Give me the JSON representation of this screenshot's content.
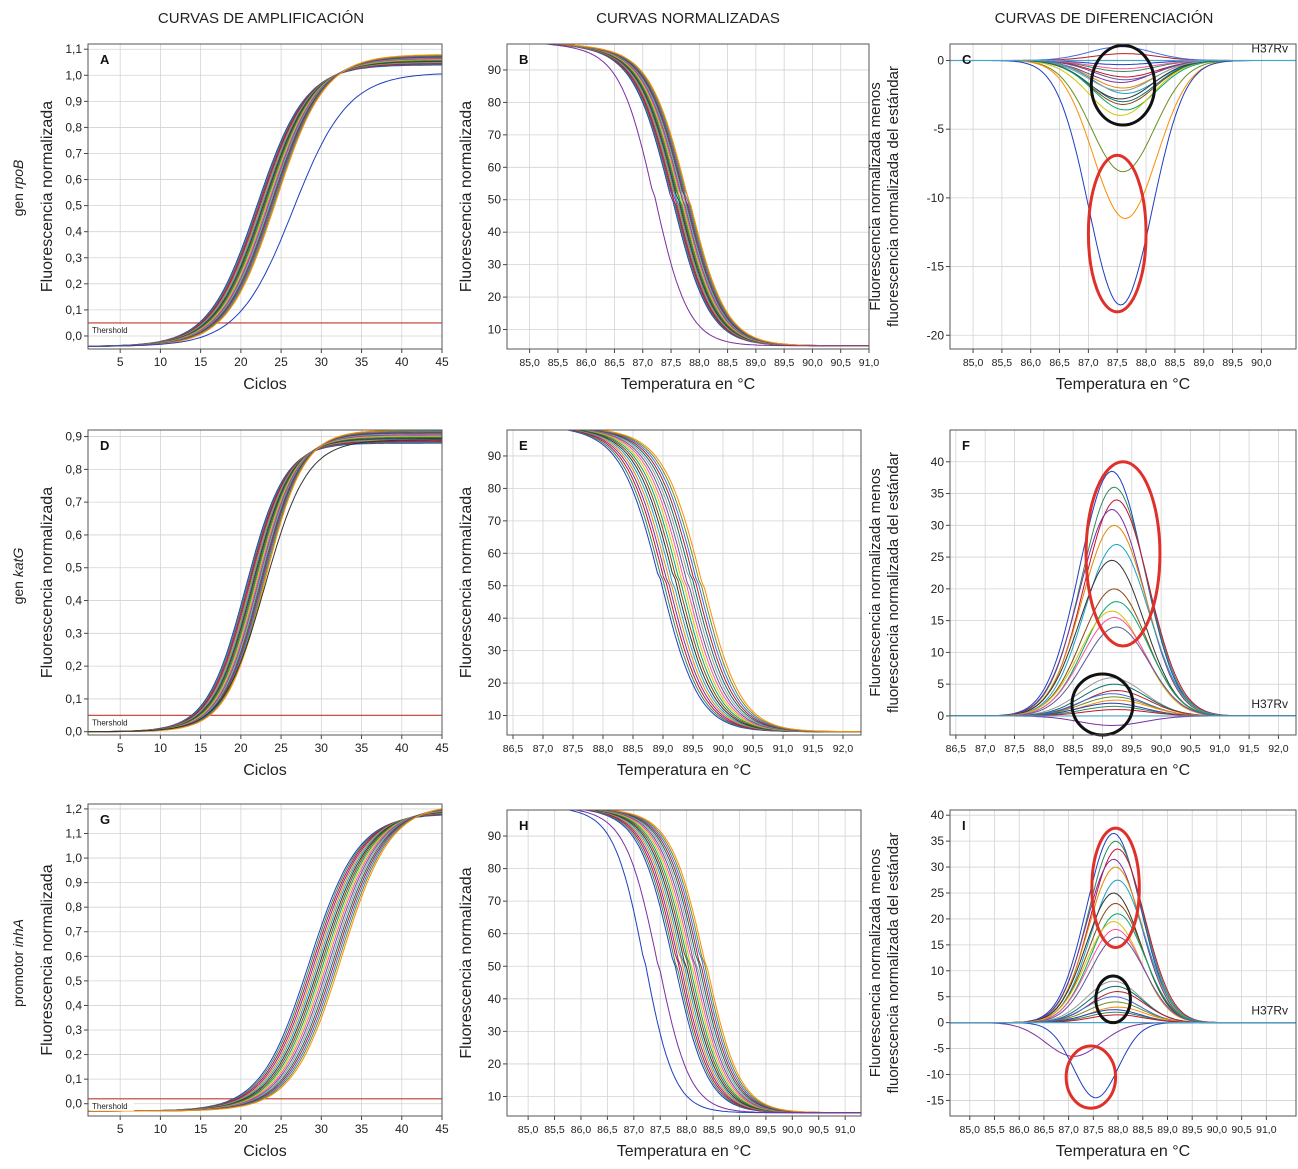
{
  "column_headers": [
    "CURVAS DE AMPLIFICACIÓN",
    "CURVAS NORMALIZADAS",
    "CURVAS DE DIFERENCIACIÓN"
  ],
  "row_labels": [
    {
      "prefix": "gen ",
      "gene": "rpoB"
    },
    {
      "prefix": "gen ",
      "gene": "katG"
    },
    {
      "prefix": "promotor ",
      "gene": "inhA"
    }
  ],
  "colors": {
    "threshold": "#c0392b",
    "highlight_red": "#e0302a",
    "highlight_black": "#111111",
    "grid": "#d3d3d3",
    "palette": [
      "#1f3fbf",
      "#2e8b57",
      "#c8102e",
      "#7b2fa0",
      "#e08a00",
      "#17a2c8",
      "#333333",
      "#8b4513",
      "#00a86b",
      "#d4c400",
      "#ff4fa0",
      "#5a5a9a",
      "#999999",
      "#0a6e6e",
      "#b22222",
      "#4169e1",
      "#6b8e23",
      "#ff8c00"
    ]
  },
  "chart_data": [
    {
      "panel": "A",
      "type": "line",
      "xlabel": "Ciclos",
      "ylabel": "Fluorescencia normalizada",
      "xlim": [
        1,
        45
      ],
      "ylim": [
        -0.05,
        1.12
      ],
      "xticks": [
        5,
        10,
        15,
        20,
        25,
        30,
        35,
        40,
        45
      ],
      "xtick_labels": [
        "5",
        "10",
        "15",
        "20",
        "25",
        "30",
        "35",
        "40",
        "45"
      ],
      "yticks": [
        0,
        0.1,
        0.2,
        0.3,
        0.4,
        0.5,
        0.6,
        0.7,
        0.8,
        0.9,
        1.0,
        1.1
      ],
      "ytick_labels": [
        "0,0",
        "0,1",
        "0,2",
        "0,3",
        "0,4",
        "0,5",
        "0,6",
        "0,7",
        "0,8",
        "0,9",
        "1,0",
        "1,1"
      ],
      "threshold": 0.05,
      "threshold_label": "Thershold",
      "family": "sigmoid",
      "midpoint": 23.2,
      "slope": 3.0,
      "top": 1.06,
      "bottom": -0.04,
      "n": 18,
      "spread": 1.2,
      "outliers": [
        {
          "midpoint": 26.5,
          "slope": 3.4,
          "top": 1.01,
          "color": "#1f3fbf"
        }
      ],
      "grid": true
    },
    {
      "panel": "B",
      "type": "line",
      "xlabel": "Temperatura en °C",
      "ylabel": "Fluorescencia normalizada",
      "xlim": [
        84.6,
        91.0
      ],
      "ylim": [
        4,
        98
      ],
      "xticks": [
        85.0,
        85.5,
        86.0,
        86.5,
        87.0,
        87.5,
        88.0,
        88.5,
        89.0,
        89.5,
        90.0,
        90.5,
        91.0
      ],
      "xtick_labels": [
        "85,0",
        "85,5",
        "86,0",
        "86,5",
        "87,0",
        "87,5",
        "88,0",
        "88,5",
        "89,0",
        "89,5",
        "90,0",
        "90,5",
        "91,0"
      ],
      "yticks": [
        10,
        20,
        30,
        40,
        50,
        60,
        70,
        80,
        90
      ],
      "ytick_labels": [
        "10",
        "20",
        "30",
        "40",
        "50",
        "60",
        "70",
        "80",
        "90"
      ],
      "family": "melt",
      "midpoint": 87.65,
      "slope": 0.33,
      "top": 99,
      "bottom": 5,
      "n": 18,
      "spread": 0.15,
      "outliers": [
        {
          "midpoint": 87.2,
          "slope": 0.3,
          "color": "#7b2fa0"
        }
      ],
      "grid": true
    },
    {
      "panel": "C",
      "type": "line",
      "xlabel": "Temperatura en °C",
      "ylabel": "Fluorescencia normalizada menos",
      "ylabel2": "fluorescencia normalizada del estándar",
      "xlim": [
        84.6,
        90.6
      ],
      "ylim": [
        -21,
        1.2
      ],
      "xticks": [
        85.0,
        85.5,
        86.0,
        86.5,
        87.0,
        87.5,
        88.0,
        88.5,
        89.0,
        89.5,
        90.0
      ],
      "xtick_labels": [
        "85,0",
        "85,5",
        "86,0",
        "86,5",
        "87,0",
        "87,5",
        "88,0",
        "88,5",
        "89,0",
        "89,5",
        "90,0"
      ],
      "yticks": [
        0,
        -5,
        -10,
        -15,
        -20
      ],
      "ytick_labels": [
        "0",
        "-5",
        "-10",
        "-15",
        "-20"
      ],
      "reference": "H37Rv",
      "family": "diff",
      "center": 87.6,
      "width": 0.55,
      "peaks": [
        -0.3,
        -0.8,
        -1.2,
        -1.6,
        -2,
        -2.4,
        -2.8,
        -3.2,
        -3.6,
        -4,
        -0.6,
        -1.4,
        -2.2,
        -3,
        0.5,
        1.0,
        -8.1,
        -11.5,
        -17.8
      ],
      "highlight_ellipses": [
        {
          "cx": 87.6,
          "cy": -1.8,
          "rx": 0.55,
          "ry": 2.9,
          "color": "black"
        },
        {
          "cx": 87.5,
          "cy": -12.6,
          "rx": 0.5,
          "ry": 5.7,
          "color": "red"
        }
      ],
      "grid": true
    },
    {
      "panel": "D",
      "type": "line",
      "xlabel": "Ciclos",
      "ylabel": "Fluorescencia normalizada",
      "xlim": [
        1,
        45
      ],
      "ylim": [
        -0.01,
        0.92
      ],
      "xticks": [
        5,
        10,
        15,
        20,
        25,
        30,
        35,
        40,
        45
      ],
      "xtick_labels": [
        "5",
        "10",
        "15",
        "20",
        "25",
        "30",
        "35",
        "40",
        "45"
      ],
      "yticks": [
        0,
        0.1,
        0.2,
        0.3,
        0.4,
        0.5,
        0.6,
        0.7,
        0.8,
        0.9
      ],
      "ytick_labels": [
        "0,0",
        "0,1",
        "0,2",
        "0,3",
        "0,4",
        "0,5",
        "0,6",
        "0,7",
        "0,8",
        "0,9"
      ],
      "threshold": 0.05,
      "threshold_label": "Thershold",
      "family": "sigmoid",
      "midpoint": 21.8,
      "slope": 2.4,
      "top": 0.9,
      "bottom": 0.0,
      "n": 18,
      "spread": 1.2,
      "outliers": [
        {
          "midpoint": 23.0,
          "slope": 2.6,
          "top": 0.89,
          "color": "#333333"
        }
      ],
      "grid": true
    },
    {
      "panel": "E",
      "type": "line",
      "xlabel": "Temperatura en °C",
      "ylabel": "Fluorescencia normalizada",
      "xlim": [
        86.4,
        92.3
      ],
      "ylim": [
        4,
        98
      ],
      "xticks": [
        86.5,
        87.0,
        87.5,
        88.0,
        88.5,
        89.0,
        89.5,
        90.0,
        90.5,
        91.0,
        91.5,
        92.0
      ],
      "xtick_labels": [
        "86,5",
        "87,0",
        "87,5",
        "88,0",
        "88,5",
        "89,0",
        "89,5",
        "90,0",
        "90,5",
        "91,0",
        "91,5",
        "92,0"
      ],
      "yticks": [
        10,
        20,
        30,
        40,
        50,
        60,
        70,
        80,
        90
      ],
      "ytick_labels": [
        "10",
        "20",
        "30",
        "40",
        "50",
        "60",
        "70",
        "80",
        "90"
      ],
      "family": "melt",
      "midpoint": 89.3,
      "slope": 0.32,
      "top": 100,
      "bottom": 5,
      "n": 18,
      "spread": 0.35,
      "outliers": [],
      "grid": true
    },
    {
      "panel": "F",
      "type": "line",
      "xlabel": "Temperatura en °C",
      "ylabel": "Fluorescencia normalizada menos",
      "ylabel2": "fluorescencia normalizada del estándar",
      "xlim": [
        86.4,
        92.3
      ],
      "ylim": [
        -3,
        45
      ],
      "xticks": [
        86.5,
        87.0,
        87.5,
        88.0,
        88.5,
        89.0,
        89.5,
        90.0,
        90.5,
        91.0,
        91.5,
        92.0
      ],
      "xtick_labels": [
        "86,5",
        "87,0",
        "87,5",
        "88,0",
        "88,5",
        "89,0",
        "89,5",
        "90,0",
        "90,5",
        "91,0",
        "91,5",
        "92,0"
      ],
      "yticks": [
        0,
        5,
        10,
        15,
        20,
        25,
        30,
        35,
        40
      ],
      "ytick_labels": [
        "0",
        "5",
        "10",
        "15",
        "20",
        "25",
        "30",
        "35",
        "40"
      ],
      "reference": "H37Rv",
      "family": "diff",
      "center": 89.2,
      "width": 0.55,
      "peaks": [
        38.5,
        36,
        34,
        32.5,
        30,
        27,
        24.5,
        20,
        18,
        16.5,
        15.5,
        14,
        6,
        5,
        4,
        3.5,
        3,
        2.5,
        2,
        1.5,
        1,
        -1.5
      ],
      "highlight_ellipses": [
        {
          "cx": 89.35,
          "cy": 25.5,
          "rx": 0.63,
          "ry": 14.5,
          "color": "red"
        },
        {
          "cx": 89.0,
          "cy": 1.8,
          "rx": 0.52,
          "ry": 4.8,
          "color": "black"
        }
      ],
      "grid": true
    },
    {
      "panel": "G",
      "type": "line",
      "xlabel": "Ciclos",
      "ylabel": "Fluorescencia normalizada",
      "xlim": [
        1,
        45
      ],
      "ylim": [
        -0.05,
        1.22
      ],
      "xticks": [
        5,
        10,
        15,
        20,
        25,
        30,
        35,
        40,
        45
      ],
      "xtick_labels": [
        "5",
        "10",
        "15",
        "20",
        "25",
        "30",
        "35",
        "40",
        "45"
      ],
      "yticks": [
        0,
        0.1,
        0.2,
        0.3,
        0.4,
        0.5,
        0.6,
        0.7,
        0.8,
        0.9,
        1.0,
        1.1,
        1.2
      ],
      "ytick_labels": [
        "0,0",
        "0,1",
        "0,2",
        "0,3",
        "0,4",
        "0,5",
        "0,6",
        "0,7",
        "0,8",
        "0,9",
        "1,0",
        "1,1",
        "1,2"
      ],
      "threshold": 0.02,
      "threshold_label": "Thershold",
      "family": "sigmoid",
      "midpoint": 30.5,
      "slope": 3.0,
      "top": 1.2,
      "bottom": -0.03,
      "n": 18,
      "spread": 2.0,
      "outliers": [],
      "grid": true
    },
    {
      "panel": "H",
      "type": "line",
      "xlabel": "Temperatura en °C",
      "ylabel": "Fluorescencia normalizada",
      "xlim": [
        84.6,
        91.3
      ],
      "ylim": [
        4,
        98
      ],
      "xticks": [
        85.0,
        85.5,
        86.0,
        86.5,
        87.0,
        87.5,
        88.0,
        88.5,
        89.0,
        89.5,
        90.0,
        90.5,
        91.0
      ],
      "xtick_labels": [
        "85,0",
        "85,5",
        "86,0",
        "86,5",
        "87,0",
        "87,5",
        "88,0",
        "88,5",
        "89,0",
        "89,5",
        "90,0",
        "90,5",
        "91,0"
      ],
      "yticks": [
        10,
        20,
        30,
        40,
        50,
        60,
        70,
        80,
        90
      ],
      "ytick_labels": [
        "10",
        "20",
        "30",
        "40",
        "50",
        "60",
        "70",
        "80",
        "90"
      ],
      "family": "melt",
      "midpoint": 88.05,
      "slope": 0.32,
      "top": 100,
      "bottom": 5,
      "n": 18,
      "spread": 0.3,
      "outliers": [
        {
          "midpoint": 87.2,
          "slope": 0.28,
          "color": "#1f3fbf"
        },
        {
          "midpoint": 87.45,
          "slope": 0.3,
          "color": "#7b2fa0"
        }
      ],
      "grid": true
    },
    {
      "panel": "I",
      "type": "line",
      "xlabel": "Temperatura en °C",
      "ylabel": "Fluorescencia normalizada menos",
      "ylabel2": "fluorescencia normalizada del estándar",
      "xlim": [
        84.6,
        91.6
      ],
      "ylim": [
        -18,
        41
      ],
      "xticks": [
        85.0,
        85.5,
        86.0,
        86.5,
        87.0,
        87.5,
        88.0,
        88.5,
        89.0,
        89.5,
        90.0,
        90.5,
        91.0
      ],
      "xtick_labels": [
        "85,0",
        "85,5",
        "86,0",
        "86,5",
        "87,0",
        "87,5",
        "88,0",
        "88,5",
        "89,0",
        "89,5",
        "90,0",
        "90,5",
        "91,0"
      ],
      "yticks": [
        -15,
        -10,
        -5,
        0,
        5,
        10,
        15,
        20,
        25,
        30,
        35,
        40
      ],
      "ytick_labels": [
        "-15",
        "-10",
        "-5",
        "0",
        "5",
        "10",
        "15",
        "20",
        "25",
        "30",
        "35",
        "40"
      ],
      "reference": "H37Rv",
      "family": "diff",
      "center": 87.95,
      "width": 0.55,
      "peaks": [
        36.5,
        35,
        33.5,
        31.5,
        30,
        27.5,
        25,
        23,
        21,
        19.5,
        18,
        16.5,
        8,
        7,
        6,
        5,
        4,
        3,
        2.5,
        2,
        1.5
      ],
      "extra_peaks": [
        {
          "center": 87.55,
          "width": 0.45,
          "amp": -14.5,
          "color": "#1f3fbf"
        },
        {
          "center": 87.1,
          "width": 0.55,
          "amp": -6.5,
          "color": "#7b2fa0"
        }
      ],
      "highlight_ellipses": [
        {
          "cx": 87.95,
          "cy": 26,
          "rx": 0.48,
          "ry": 11.5,
          "color": "red"
        },
        {
          "cx": 87.9,
          "cy": 4.5,
          "rx": 0.35,
          "ry": 4.5,
          "color": "black"
        },
        {
          "cx": 87.45,
          "cy": -10.5,
          "rx": 0.5,
          "ry": 6.0,
          "color": "red"
        }
      ],
      "grid": true
    }
  ]
}
